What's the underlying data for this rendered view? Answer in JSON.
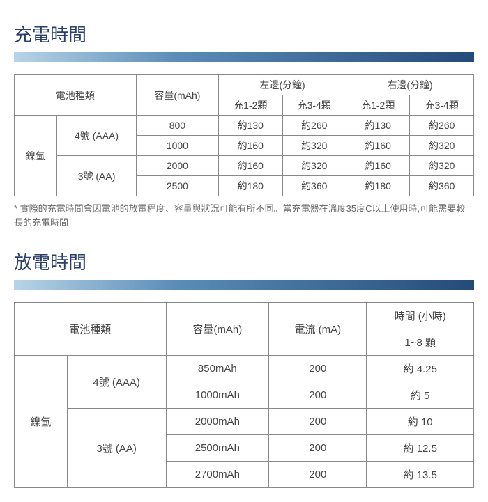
{
  "section1": {
    "title": "充電時間",
    "headers": {
      "battery_type": "電池種類",
      "capacity": "容量(mAh)",
      "left": "左邊(分鐘)",
      "right": "右邊(分鐘)",
      "c12": "充1-2顆",
      "c34": "充3-4顆"
    },
    "group_label": "鎳氫",
    "subgroups": [
      {
        "label": "4號 (AAA)",
        "rows": [
          {
            "cap": "800",
            "l12": "約130",
            "l34": "約260",
            "r12": "約130",
            "r34": "約260"
          },
          {
            "cap": "1000",
            "l12": "約160",
            "l34": "約320",
            "r12": "約160",
            "r34": "約320"
          }
        ]
      },
      {
        "label": "3號 (AA)",
        "rows": [
          {
            "cap": "2000",
            "l12": "約160",
            "l34": "約320",
            "r12": "約160",
            "r34": "約320"
          },
          {
            "cap": "2500",
            "l12": "約180",
            "l34": "約360",
            "r12": "約180",
            "r34": "約360"
          }
        ]
      }
    ],
    "footnote": "* 實際的充電時間會因電池的放電程度、容量與狀況可能有所不同。當充電器在溫度35度C以上使用時,可能需要較長的充電時間"
  },
  "section2": {
    "title": "放電時間",
    "headers": {
      "battery_type": "電池種類",
      "capacity": "容量(mAh)",
      "current": "電流 (mA)",
      "time": "時間 (小時)",
      "count": "1~8 顆"
    },
    "group_label": "鎳氫",
    "subgroups": [
      {
        "label": "4號 (AAA)",
        "rows": [
          {
            "cap": "850mAh",
            "cur": "200",
            "time": "約 4.25"
          },
          {
            "cap": "1000mAh",
            "cur": "200",
            "time": "約 5"
          }
        ]
      },
      {
        "label": "3號 (AA)",
        "rows": [
          {
            "cap": "2000mAh",
            "cur": "200",
            "time": "約 10"
          },
          {
            "cap": "2500mAh",
            "cur": "200",
            "time": "約 12.5"
          },
          {
            "cap": "2700mAh",
            "cur": "200",
            "time": "約 13.5"
          }
        ]
      }
    ]
  }
}
